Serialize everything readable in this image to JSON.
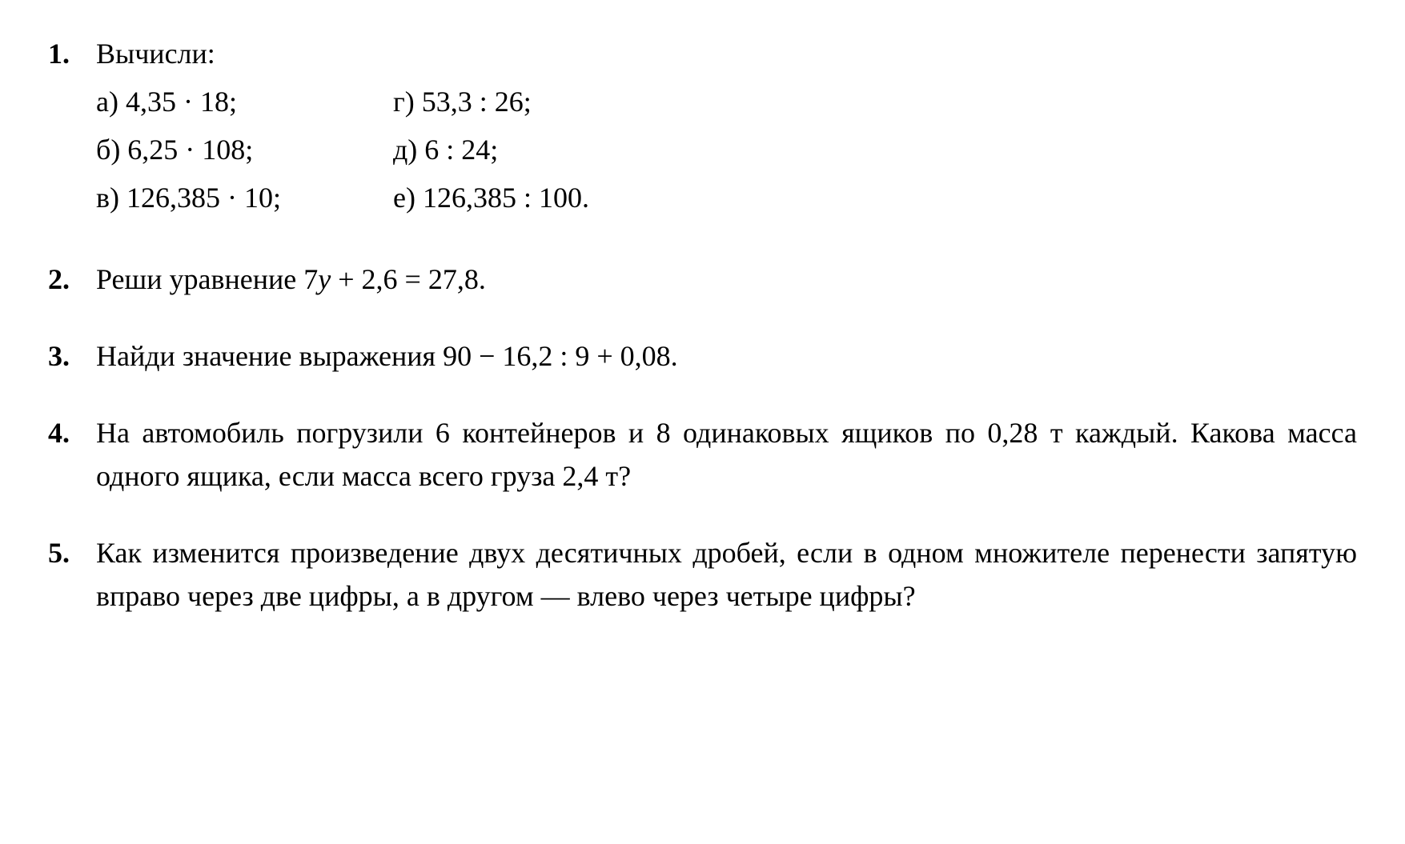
{
  "text_color": "#000000",
  "background_color": "#ffffff",
  "font_family": "Times New Roman",
  "base_font_size": 36,
  "problems": {
    "p1": {
      "number": "1.",
      "title": "Вычисли:",
      "col1": {
        "a": "а)  4,35 · 18;",
        "b": "б)  6,25 · 108;",
        "v": "в)  126,385 · 10;"
      },
      "col2": {
        "g": "г)  53,3 : 26;",
        "d": "д)  6 : 24;",
        "e": "е)  126,385 : 100."
      }
    },
    "p2": {
      "number": "2.",
      "text_before": "Реши уравнение   7",
      "variable": "у",
      "text_after": " + 2,6 = 27,8."
    },
    "p3": {
      "number": "3.",
      "text": "Найди значение выражения   90 − 16,2 : 9 + 0,08."
    },
    "p4": {
      "number": "4.",
      "text": "На автомобиль погрузили 6 контейнеров и 8 одинаковых ящиков по 0,28 т каждый. Какова масса одного ящика, если масса всего груза 2,4 т?"
    },
    "p5": {
      "number": "5.",
      "text": "Как изменится произведение двух десятичных дробей, если в одном множителе перенести запятую вправо через две цифры, а в другом — влево через четыре цифры?"
    }
  }
}
